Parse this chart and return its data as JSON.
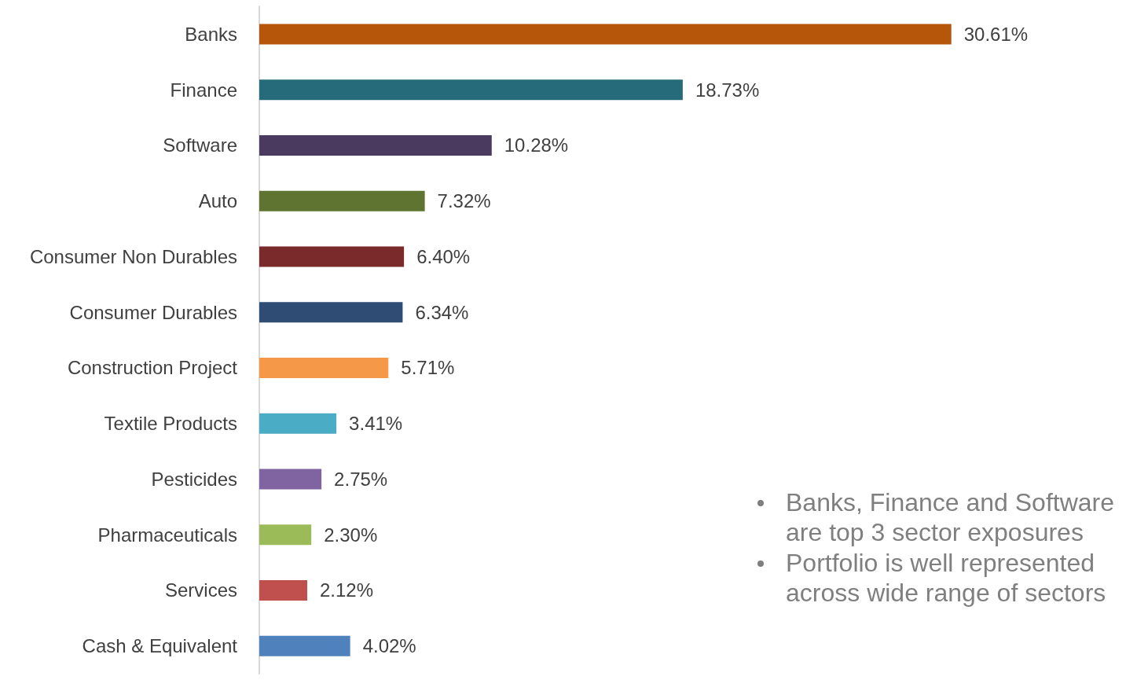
{
  "chart_data": {
    "type": "bar",
    "orientation": "horizontal",
    "categories": [
      "Banks",
      "Finance",
      "Software",
      "Auto",
      "Consumer Non Durables",
      "Consumer Durables",
      "Construction Project",
      "Textile Products",
      "Pesticides",
      "Pharmaceuticals",
      "Services",
      "Cash & Equivalent"
    ],
    "values": [
      30.61,
      18.73,
      10.28,
      7.32,
      6.4,
      6.34,
      5.71,
      3.41,
      2.75,
      2.3,
      2.12,
      4.02
    ],
    "value_labels": [
      "30.61%",
      "18.73%",
      "10.28%",
      "7.32%",
      "6.40%",
      "6.34%",
      "5.71%",
      "3.41%",
      "2.75%",
      "2.30%",
      "2.12%",
      "4.02%"
    ],
    "colors": [
      "#b5560b",
      "#266b7a",
      "#4b3a60",
      "#5f7430",
      "#7a2a2a",
      "#2e4c74",
      "#f59847",
      "#4bacc6",
      "#8064a2",
      "#9bbb59",
      "#c0504d",
      "#4f81bd"
    ],
    "annotations": [
      "Banks, Finance and Software are top 3 sector exposures",
      "Portfolio is well represented across wide range of sectors"
    ],
    "grid": false
  }
}
